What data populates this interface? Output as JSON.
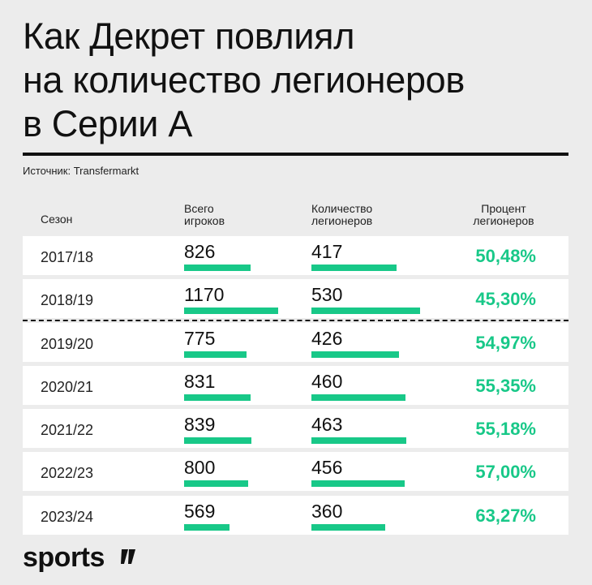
{
  "title_lines": [
    "Как Декрет повлиял",
    "на количество легионеров",
    "в Серии А"
  ],
  "source": "Источник: Transfermarkt",
  "headers": {
    "season": "Сезон",
    "total_line1": "Всего",
    "total_line2": "игроков",
    "leg_line1": "Количество",
    "leg_line2": "легионеров",
    "pct_line1": "Процент",
    "pct_line2": "легионеров"
  },
  "brand": "sports",
  "colors": {
    "accent": "#18c888",
    "background": "#ececec",
    "row": "#ffffff"
  },
  "chart_data": {
    "type": "table",
    "columns": [
      "Сезон",
      "Всего игроков",
      "Количество легионеров",
      "Процент легионеров"
    ],
    "rows": [
      {
        "season": "2017/18",
        "total": "826",
        "legionnaires": "417",
        "percent": "50,48%"
      },
      {
        "season": "2018/19",
        "total": "1170",
        "legionnaires": "530",
        "percent": "45,30%"
      },
      {
        "season": "2019/20",
        "total": "775",
        "legionnaires": "426",
        "percent": "54,97%"
      },
      {
        "season": "2020/21",
        "total": "831",
        "legionnaires": "460",
        "percent": "55,35%"
      },
      {
        "season": "2021/22",
        "total": "839",
        "legionnaires": "463",
        "percent": "55,18%"
      },
      {
        "season": "2022/23",
        "total": "800",
        "legionnaires": "456",
        "percent": "57,00%"
      },
      {
        "season": "2023/24",
        "total": "569",
        "legionnaires": "360",
        "percent": "63,27%"
      }
    ]
  }
}
